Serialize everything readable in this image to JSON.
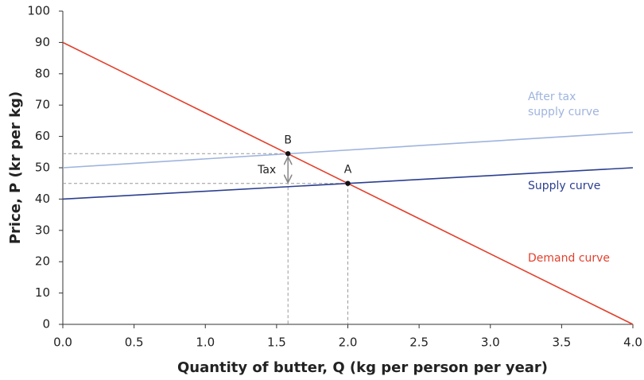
{
  "chart_data": {
    "type": "line",
    "xlabel": "Quantity of butter, Q (kg per person per year)",
    "ylabel": "Price, P (kr per kg)",
    "xlim": [
      0,
      4
    ],
    "ylim": [
      0,
      100
    ],
    "xticks": [
      {
        "value": 0,
        "label": "0.0"
      },
      0.5,
      {
        "value": 1,
        "label": "1.0"
      },
      1.5,
      {
        "value": 2,
        "label": "2.0"
      },
      2.5,
      {
        "value": 3,
        "label": "3.0"
      },
      3.5,
      {
        "value": 4,
        "label": "4.0"
      }
    ],
    "yticks": [
      0,
      10,
      20,
      30,
      40,
      50,
      60,
      70,
      80,
      90,
      100
    ],
    "grid": false,
    "series": [
      {
        "name": "After tax supply curve",
        "color": "#9fb4de",
        "x": [
          0,
          4
        ],
        "values": [
          50,
          61.3
        ]
      },
      {
        "name": "Supply curve",
        "color": "#2b3f8f",
        "x": [
          0,
          4
        ],
        "values": [
          40,
          50
        ]
      },
      {
        "name": "Demand curve",
        "color": "#e2402c",
        "x": [
          0,
          4
        ],
        "values": [
          90,
          0
        ]
      }
    ],
    "points": [
      {
        "label": "A",
        "x": 2,
        "y": 45
      },
      {
        "label": "B",
        "x": 1.58,
        "y": 54.5
      }
    ],
    "tax_label": "Tax"
  }
}
